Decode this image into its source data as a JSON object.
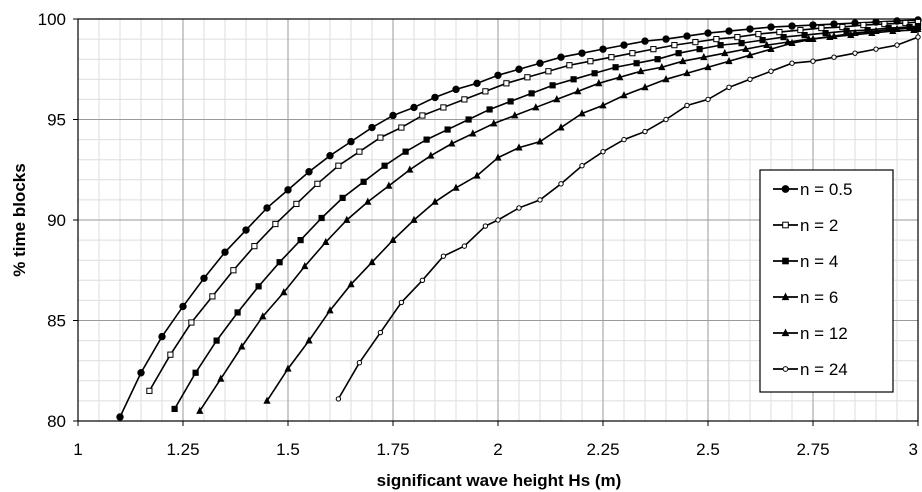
{
  "chart_data": {
    "type": "line",
    "title": "",
    "xlabel": "significant wave height Hs (m)",
    "ylabel": "% time blocks",
    "xlim": [
      1,
      3
    ],
    "ylim": [
      80,
      100
    ],
    "x_ticks": [
      "1",
      "1.25",
      "1.5",
      "1.75",
      "2",
      "2.25",
      "2.5",
      "2.75",
      "3"
    ],
    "y_ticks": [
      "80",
      "85",
      "90",
      "95",
      "100"
    ],
    "grid": true,
    "legend_position": "right",
    "series": [
      {
        "name": "n = 0.5",
        "marker": "filled-circle",
        "x": [
          1.1,
          1.15,
          1.2,
          1.25,
          1.3,
          1.35,
          1.4,
          1.45,
          1.5,
          1.55,
          1.6,
          1.65,
          1.7,
          1.75,
          1.8,
          1.85,
          1.9,
          1.95,
          2.0,
          2.05,
          2.1,
          2.15,
          2.2,
          2.25,
          2.3,
          2.35,
          2.4,
          2.45,
          2.5,
          2.55,
          2.6,
          2.65,
          2.7,
          2.75,
          2.8,
          2.85,
          2.9,
          2.95,
          3.0
        ],
        "y": [
          80.2,
          82.4,
          84.2,
          85.7,
          87.1,
          88.4,
          89.5,
          90.6,
          91.5,
          92.4,
          93.2,
          93.9,
          94.6,
          95.2,
          95.6,
          96.1,
          96.5,
          96.8,
          97.2,
          97.5,
          97.8,
          98.1,
          98.3,
          98.5,
          98.7,
          98.9,
          99.0,
          99.15,
          99.3,
          99.4,
          99.5,
          99.6,
          99.65,
          99.7,
          99.75,
          99.8,
          99.85,
          99.9,
          99.95
        ]
      },
      {
        "name": "n = 2",
        "marker": "open-square",
        "x": [
          1.17,
          1.22,
          1.27,
          1.32,
          1.37,
          1.42,
          1.47,
          1.52,
          1.57,
          1.62,
          1.67,
          1.72,
          1.77,
          1.82,
          1.87,
          1.92,
          1.97,
          2.02,
          2.07,
          2.12,
          2.17,
          2.22,
          2.27,
          2.32,
          2.37,
          2.42,
          2.47,
          2.52,
          2.57,
          2.62,
          2.67,
          2.72,
          2.77,
          2.82,
          2.87,
          2.92,
          2.97,
          3.0
        ],
        "y": [
          81.5,
          83.3,
          84.9,
          86.2,
          87.5,
          88.7,
          89.8,
          90.8,
          91.8,
          92.7,
          93.4,
          94.1,
          94.6,
          95.2,
          95.6,
          96.0,
          96.4,
          96.8,
          97.1,
          97.4,
          97.7,
          97.9,
          98.1,
          98.3,
          98.5,
          98.7,
          98.85,
          99.0,
          99.1,
          99.25,
          99.35,
          99.45,
          99.55,
          99.6,
          99.7,
          99.75,
          99.8,
          99.85
        ]
      },
      {
        "name": "n = 4",
        "marker": "filled-square",
        "x": [
          1.23,
          1.28,
          1.33,
          1.38,
          1.43,
          1.48,
          1.53,
          1.58,
          1.63,
          1.68,
          1.73,
          1.78,
          1.83,
          1.88,
          1.93,
          1.98,
          2.03,
          2.08,
          2.13,
          2.18,
          2.23,
          2.28,
          2.33,
          2.38,
          2.43,
          2.48,
          2.53,
          2.58,
          2.63,
          2.68,
          2.73,
          2.78,
          2.83,
          2.88,
          2.93,
          2.98,
          3.0
        ],
        "y": [
          80.6,
          82.4,
          84.0,
          85.4,
          86.7,
          87.9,
          89.0,
          90.1,
          91.1,
          91.9,
          92.7,
          93.4,
          94.0,
          94.5,
          95.0,
          95.5,
          95.9,
          96.3,
          96.7,
          97.0,
          97.3,
          97.6,
          97.8,
          98.0,
          98.3,
          98.5,
          98.7,
          98.8,
          98.95,
          99.1,
          99.2,
          99.3,
          99.4,
          99.45,
          99.55,
          99.6,
          99.65
        ]
      },
      {
        "name": "n = 6",
        "marker": "filled-triangle",
        "x": [
          1.29,
          1.34,
          1.39,
          1.44,
          1.49,
          1.54,
          1.59,
          1.64,
          1.69,
          1.74,
          1.79,
          1.84,
          1.89,
          1.94,
          1.99,
          2.04,
          2.09,
          2.14,
          2.19,
          2.24,
          2.29,
          2.34,
          2.39,
          2.44,
          2.49,
          2.54,
          2.59,
          2.64,
          2.69,
          2.74,
          2.79,
          2.84,
          2.89,
          2.94,
          2.99,
          3.0
        ],
        "y": [
          80.5,
          82.1,
          83.7,
          85.2,
          86.4,
          87.7,
          88.9,
          90.0,
          90.9,
          91.7,
          92.5,
          93.2,
          93.8,
          94.3,
          94.8,
          95.2,
          95.6,
          96.0,
          96.4,
          96.8,
          97.1,
          97.4,
          97.6,
          97.9,
          98.1,
          98.3,
          98.5,
          98.7,
          98.85,
          99.0,
          99.1,
          99.2,
          99.3,
          99.4,
          99.45,
          99.5
        ]
      },
      {
        "name": "n = 12",
        "marker": "filled-triangle",
        "x": [
          1.45,
          1.5,
          1.55,
          1.6,
          1.65,
          1.7,
          1.75,
          1.8,
          1.85,
          1.9,
          1.95,
          2.0,
          2.05,
          2.1,
          2.15,
          2.2,
          2.25,
          2.3,
          2.35,
          2.4,
          2.45,
          2.5,
          2.55,
          2.6,
          2.65,
          2.7,
          2.75,
          2.8,
          2.85,
          2.9,
          2.95,
          3.0
        ],
        "y": [
          81.0,
          82.6,
          84.0,
          85.5,
          86.8,
          87.9,
          89.0,
          90.0,
          90.9,
          91.6,
          92.2,
          93.1,
          93.6,
          93.9,
          94.6,
          95.3,
          95.7,
          96.2,
          96.6,
          97.0,
          97.3,
          97.6,
          97.9,
          98.2,
          98.5,
          98.8,
          99.0,
          99.15,
          99.3,
          99.4,
          99.5,
          99.6
        ]
      },
      {
        "name": "n = 24",
        "marker": "open-circle",
        "x": [
          1.62,
          1.67,
          1.72,
          1.77,
          1.82,
          1.87,
          1.92,
          1.97,
          2.0,
          2.05,
          2.1,
          2.15,
          2.2,
          2.25,
          2.3,
          2.35,
          2.4,
          2.45,
          2.5,
          2.55,
          2.6,
          2.65,
          2.7,
          2.75,
          2.8,
          2.85,
          2.9,
          2.95,
          3.0
        ],
        "y": [
          81.1,
          82.9,
          84.4,
          85.9,
          87.0,
          88.2,
          88.7,
          89.7,
          90.0,
          90.6,
          91.0,
          91.8,
          92.7,
          93.4,
          94.0,
          94.4,
          95.0,
          95.7,
          96.0,
          96.6,
          97.0,
          97.4,
          97.8,
          97.9,
          98.1,
          98.3,
          98.5,
          98.7,
          99.1
        ]
      }
    ]
  }
}
